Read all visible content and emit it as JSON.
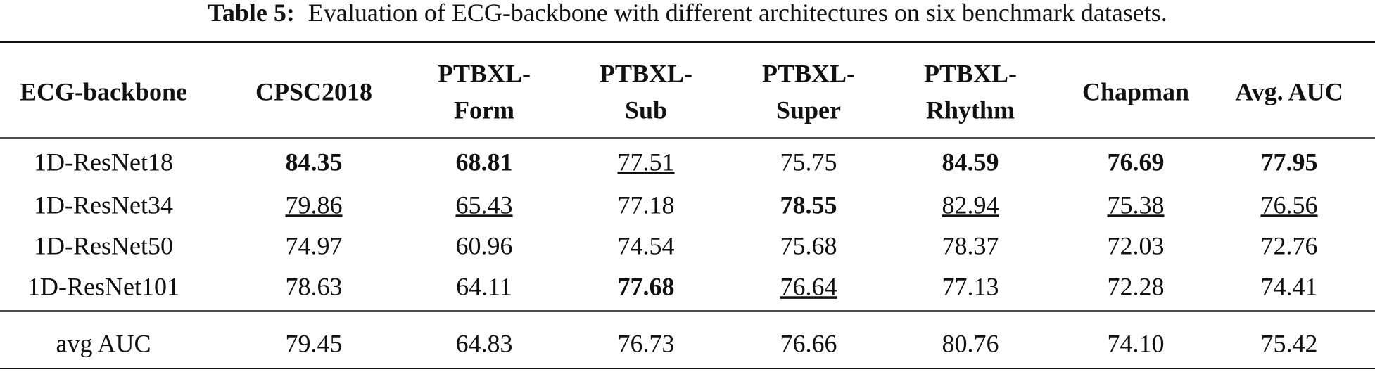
{
  "caption": {
    "label": "Table 5:",
    "text": "Evaluation of ECG-backbone with different architectures on six benchmark datasets."
  },
  "table": {
    "header": [
      [
        "ECG-backbone"
      ],
      [
        "CPSC2018"
      ],
      [
        "PTBXL-",
        "Form"
      ],
      [
        "PTBXL-",
        "Sub"
      ],
      [
        "PTBXL-",
        "Super"
      ],
      [
        "PTBXL-",
        "Rhythm"
      ],
      [
        "Chapman"
      ],
      [
        "Avg. AUC"
      ]
    ],
    "rows": [
      {
        "cells": [
          "1D-ResNet18",
          "84.35",
          "68.81",
          "77.51",
          "75.75",
          "84.59",
          "76.69",
          "77.95"
        ],
        "bold": [
          1,
          2,
          5,
          6,
          7
        ],
        "underline": [
          3
        ]
      },
      {
        "cells": [
          "1D-ResNet34",
          "79.86",
          "65.43",
          "77.18",
          "78.55",
          "82.94",
          "75.38",
          "76.56"
        ],
        "bold": [
          4
        ],
        "underline": [
          1,
          2,
          5,
          6,
          7
        ]
      },
      {
        "cells": [
          "1D-ResNet50",
          "74.97",
          "60.96",
          "74.54",
          "75.68",
          "78.37",
          "72.03",
          "72.76"
        ],
        "bold": [],
        "underline": []
      },
      {
        "cells": [
          "1D-ResNet101",
          "78.63",
          "64.11",
          "77.68",
          "76.64",
          "77.13",
          "72.28",
          "74.41"
        ],
        "bold": [
          3
        ],
        "underline": [
          4
        ]
      }
    ],
    "footer": {
      "cells": [
        "avg AUC",
        "79.45",
        "64.83",
        "76.73",
        "76.66",
        "80.76",
        "74.10",
        "75.42"
      ]
    }
  }
}
